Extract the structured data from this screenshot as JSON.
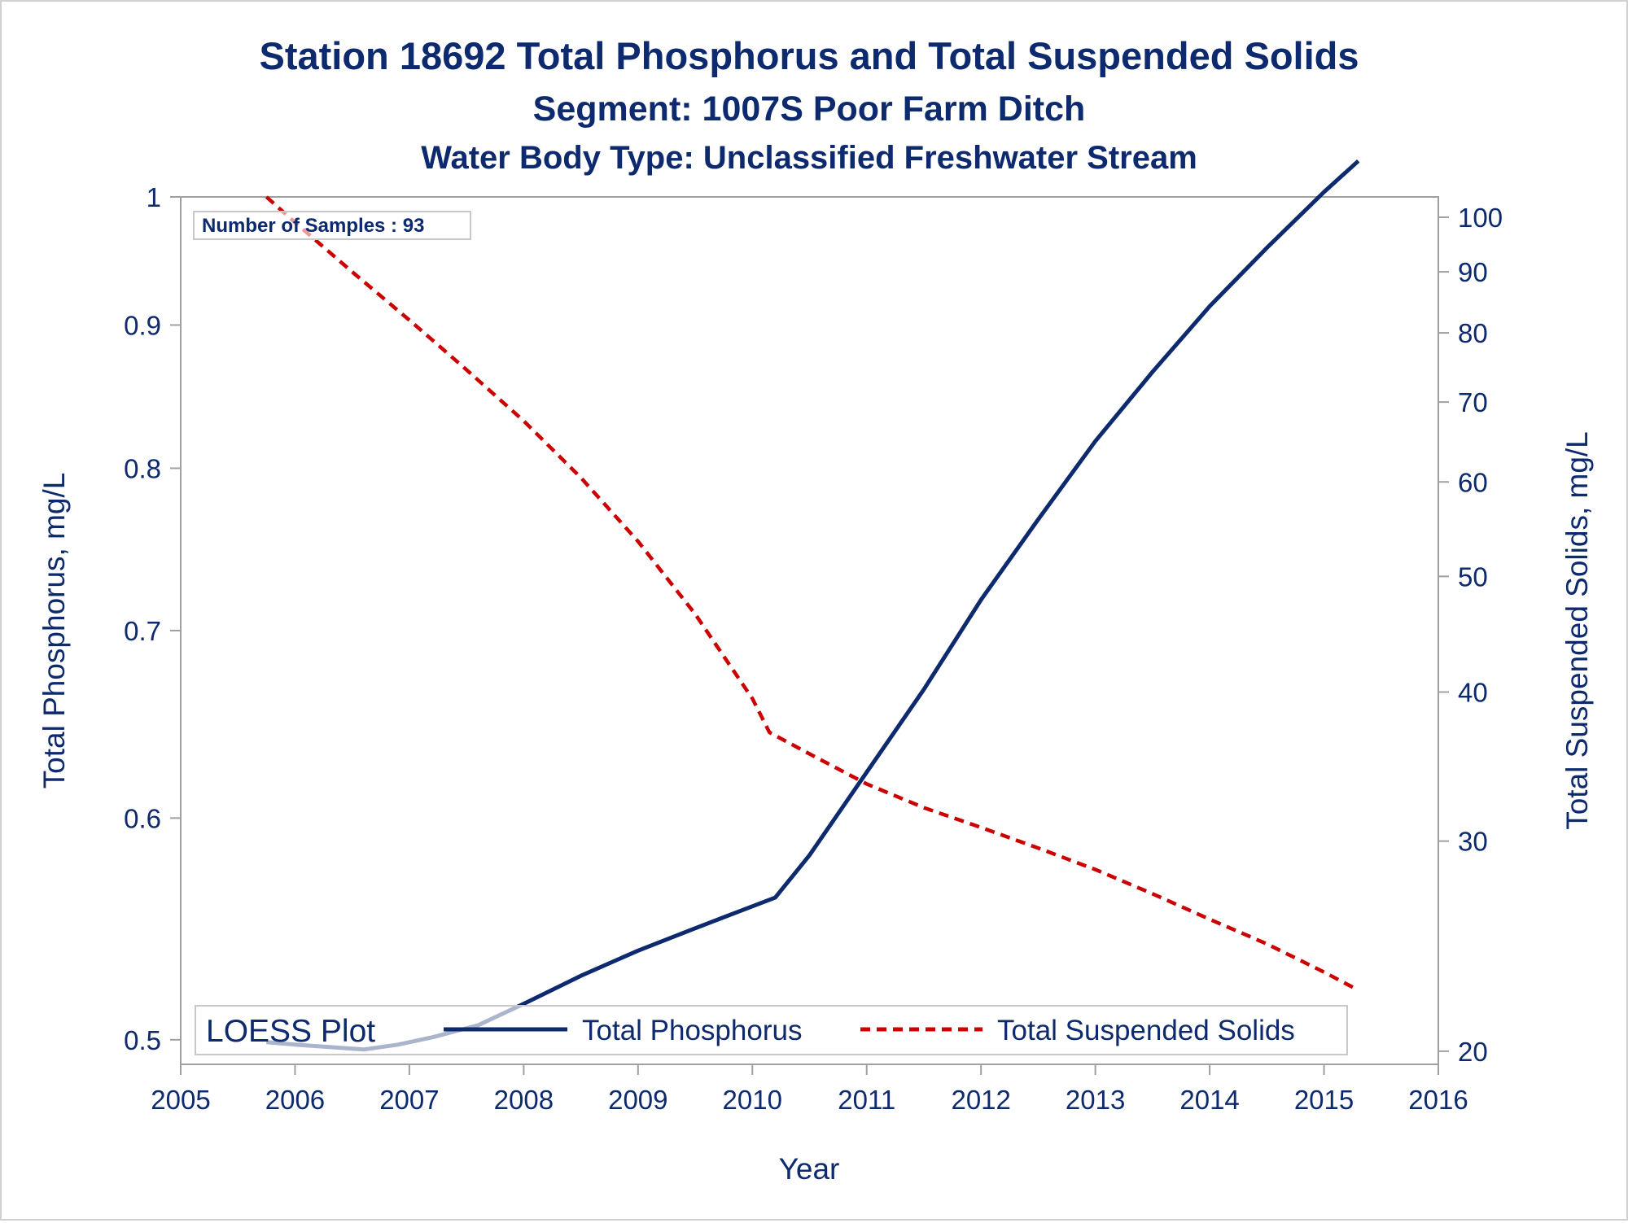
{
  "colors": {
    "text": "#0d2a6e",
    "axis": "#a0a0a0",
    "phosphorus": "#0d2a6e",
    "suspended_solids": "#cc0000"
  },
  "chart_data": {
    "type": "line",
    "title": "Station 18692  Total Phosphorus and Total Suspended Solids",
    "subtitle": "Segment: 1007S  Poor Farm Ditch",
    "subtitle2": "Water Body Type: Unclassified Freshwater Stream",
    "xlabel": "Year",
    "ylabel": "Total Phosphorus, mg/L",
    "y2label": "Total Suspended Solids, mg/L",
    "xlim": [
      2005,
      2016
    ],
    "ylim": [
      0.49,
      1.0
    ],
    "y2lim": [
      19.5,
      104
    ],
    "yscale": "log",
    "y2scale": "log",
    "xticks": [
      2005,
      2006,
      2007,
      2008,
      2009,
      2010,
      2011,
      2012,
      2013,
      2014,
      2015,
      2016
    ],
    "yticks": [
      0.5,
      0.6,
      0.7,
      0.8,
      0.9,
      1
    ],
    "y2ticks": [
      20,
      30,
      40,
      50,
      60,
      70,
      80,
      90,
      100
    ],
    "inset": "Number of Samples : 93",
    "legend": {
      "title": "LOESS Plot",
      "position": "bottom",
      "entries": [
        "Total Phosphorus",
        "Total Suspended Solids"
      ]
    },
    "series": [
      {
        "name": "Total Phosphorus",
        "axis": "left",
        "style": "solid",
        "x": [
          2005.75,
          2006.0,
          2006.3,
          2006.6,
          2006.9,
          2007.2,
          2007.6,
          2008.0,
          2008.5,
          2009.0,
          2009.5,
          2010.0,
          2010.2,
          2010.5,
          2011.0,
          2011.5,
          2012.0,
          2012.5,
          2013.0,
          2013.5,
          2014.0,
          2014.5,
          2015.0,
          2015.3
        ],
        "y": [
          0.499,
          0.498,
          0.497,
          0.496,
          0.498,
          0.501,
          0.506,
          0.515,
          0.527,
          0.538,
          0.548,
          0.558,
          0.562,
          0.582,
          0.623,
          0.667,
          0.718,
          0.767,
          0.818,
          0.866,
          0.914,
          0.959,
          1.004,
          1.03
        ]
      },
      {
        "name": "Total Suspended Solids",
        "axis": "right",
        "style": "dashed",
        "x": [
          2005.75,
          2006.0,
          2006.5,
          2007.0,
          2007.5,
          2008.0,
          2008.5,
          2009.0,
          2009.5,
          2010.0,
          2010.15,
          2010.5,
          2011.0,
          2011.5,
          2012.0,
          2012.5,
          2013.0,
          2013.5,
          2014.0,
          2014.5,
          2015.0,
          2015.3
        ],
        "y": [
          104,
          99,
          90,
          82,
          74.5,
          67.5,
          60.5,
          53.5,
          46.5,
          39.5,
          37,
          35.5,
          33.5,
          32,
          30.8,
          29.6,
          28.4,
          27.1,
          25.8,
          24.6,
          23.3,
          22.5
        ]
      }
    ]
  }
}
